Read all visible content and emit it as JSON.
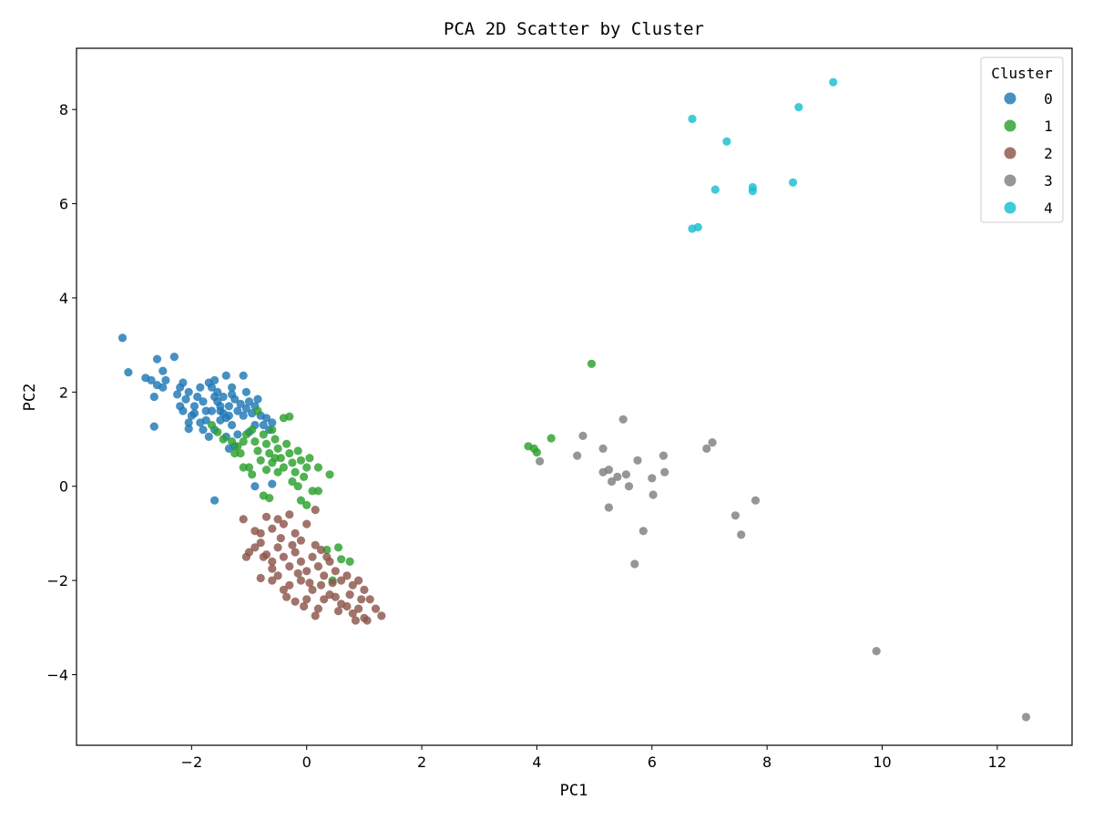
{
  "chart_data": {
    "type": "scatter",
    "title": "PCA 2D Scatter by Cluster",
    "xlabel": "PC1",
    "ylabel": "PC2",
    "xlim": [
      -4.0,
      13.3
    ],
    "ylim": [
      -5.5,
      9.3
    ],
    "xticks": [
      -2,
      0,
      2,
      4,
      6,
      8,
      10,
      12
    ],
    "xtick_labels": [
      "−2",
      "0",
      "2",
      "4",
      "6",
      "8",
      "10",
      "12"
    ],
    "yticks": [
      -4,
      -2,
      0,
      2,
      4,
      6,
      8
    ],
    "ytick_labels": [
      "−4",
      "−2",
      "0",
      "2",
      "4",
      "6",
      "8"
    ],
    "grid": false,
    "legend": {
      "title": "Cluster",
      "placement": "top-right"
    },
    "series": [
      {
        "name": "0",
        "color": "#1f77b4",
        "points": [
          [
            -3.2,
            3.15
          ],
          [
            -3.1,
            2.42
          ],
          [
            -2.6,
            2.7
          ],
          [
            -2.3,
            2.75
          ],
          [
            -2.8,
            2.3
          ],
          [
            -2.7,
            2.25
          ],
          [
            -2.5,
            2.45
          ],
          [
            -2.45,
            2.25
          ],
          [
            -2.5,
            2.1
          ],
          [
            -2.6,
            2.15
          ],
          [
            -2.65,
            1.9
          ],
          [
            -2.65,
            1.27
          ],
          [
            -2.2,
            2.1
          ],
          [
            -2.15,
            2.2
          ],
          [
            -2.25,
            1.95
          ],
          [
            -2.05,
            2.0
          ],
          [
            -2.1,
            1.85
          ],
          [
            -2.2,
            1.7
          ],
          [
            -2.15,
            1.6
          ],
          [
            -2.0,
            1.5
          ],
          [
            -2.05,
            1.35
          ],
          [
            -2.05,
            1.22
          ],
          [
            -1.95,
            1.7
          ],
          [
            -1.9,
            1.9
          ],
          [
            -1.85,
            2.1
          ],
          [
            -1.8,
            1.8
          ],
          [
            -1.75,
            1.6
          ],
          [
            -1.75,
            1.4
          ],
          [
            -1.8,
            1.2
          ],
          [
            -1.7,
            1.05
          ],
          [
            -1.7,
            2.2
          ],
          [
            -1.6,
            2.25
          ],
          [
            -1.55,
            2.0
          ],
          [
            -1.55,
            1.8
          ],
          [
            -1.5,
            1.6
          ],
          [
            -1.5,
            1.4
          ],
          [
            -1.45,
            1.9
          ],
          [
            -1.45,
            1.55
          ],
          [
            -1.4,
            2.35
          ],
          [
            -1.35,
            1.7
          ],
          [
            -1.35,
            1.5
          ],
          [
            -1.3,
            2.1
          ],
          [
            -1.3,
            1.3
          ],
          [
            -1.25,
            1.85
          ],
          [
            -1.2,
            1.6
          ],
          [
            -1.15,
            1.75
          ],
          [
            -1.1,
            1.5
          ],
          [
            -1.1,
            2.35
          ],
          [
            -1.05,
            2.0
          ],
          [
            -1.0,
            1.8
          ],
          [
            -0.95,
            1.55
          ],
          [
            -0.9,
            1.7
          ],
          [
            -0.85,
            1.85
          ],
          [
            -0.8,
            1.5
          ],
          [
            -0.75,
            1.3
          ],
          [
            -0.7,
            1.45
          ],
          [
            -0.65,
            1.2
          ],
          [
            -0.6,
            1.35
          ],
          [
            -1.6,
            1.2
          ],
          [
            -1.65,
            1.6
          ],
          [
            -1.6,
            1.9
          ],
          [
            -1.4,
            1.05
          ],
          [
            -1.25,
            0.85
          ],
          [
            -1.35,
            0.8
          ],
          [
            -1.2,
            1.1
          ],
          [
            -1.05,
            1.65
          ],
          [
            -0.9,
            1.3
          ],
          [
            -1.0,
            1.15
          ],
          [
            -1.95,
            1.55
          ],
          [
            -1.85,
            1.35
          ],
          [
            -1.65,
            2.1
          ],
          [
            -1.5,
            1.7
          ],
          [
            -1.3,
            1.95
          ],
          [
            -1.4,
            1.45
          ],
          [
            -0.9,
            0.0
          ],
          [
            -0.6,
            0.05
          ],
          [
            -1.6,
            -0.3
          ]
        ]
      },
      {
        "name": "1",
        "color": "#2ca02c",
        "points": [
          [
            4.95,
            2.6
          ],
          [
            4.25,
            1.02
          ],
          [
            3.85,
            0.85
          ],
          [
            3.95,
            0.8
          ],
          [
            4.0,
            0.72
          ],
          [
            -1.65,
            1.3
          ],
          [
            -1.55,
            1.15
          ],
          [
            -1.45,
            1.0
          ],
          [
            -1.3,
            0.95
          ],
          [
            -1.2,
            0.85
          ],
          [
            -1.15,
            0.7
          ],
          [
            -1.05,
            1.1
          ],
          [
            -0.95,
            1.2
          ],
          [
            -0.9,
            0.95
          ],
          [
            -0.85,
            0.75
          ],
          [
            -0.8,
            0.55
          ],
          [
            -0.75,
            1.1
          ],
          [
            -0.7,
            0.9
          ],
          [
            -0.65,
            0.7
          ],
          [
            -0.6,
            0.5
          ],
          [
            -0.55,
            1.0
          ],
          [
            -0.5,
            0.8
          ],
          [
            -0.45,
            0.6
          ],
          [
            -0.4,
            0.4
          ],
          [
            -0.35,
            0.9
          ],
          [
            -0.3,
            0.7
          ],
          [
            -0.25,
            0.5
          ],
          [
            -0.2,
            0.3
          ],
          [
            -0.15,
            0.75
          ],
          [
            -0.1,
            0.55
          ],
          [
            -0.05,
            0.2
          ],
          [
            0.0,
            0.4
          ],
          [
            0.05,
            0.6
          ],
          [
            0.1,
            -0.1
          ],
          [
            0.2,
            0.4
          ],
          [
            0.4,
            0.25
          ],
          [
            -0.4,
            1.45
          ],
          [
            -0.3,
            1.48
          ],
          [
            -0.6,
            1.2
          ],
          [
            -0.85,
            1.6
          ],
          [
            -1.0,
            0.4
          ],
          [
            -0.95,
            0.25
          ],
          [
            -1.1,
            0.4
          ],
          [
            -0.75,
            -0.2
          ],
          [
            -0.65,
            -0.25
          ],
          [
            -0.1,
            -0.3
          ],
          [
            0.0,
            -0.4
          ],
          [
            0.2,
            -0.1
          ],
          [
            -1.25,
            0.7
          ],
          [
            -1.1,
            0.95
          ],
          [
            -0.5,
            0.3
          ],
          [
            -0.25,
            0.1
          ],
          [
            -0.15,
            0.0
          ],
          [
            0.55,
            -1.3
          ],
          [
            0.6,
            -1.55
          ],
          [
            0.75,
            -1.6
          ],
          [
            0.45,
            -2.0
          ],
          [
            0.35,
            -1.35
          ],
          [
            -0.55,
            0.6
          ],
          [
            -0.7,
            0.35
          ]
        ]
      },
      {
        "name": "2",
        "color": "#8c564b",
        "points": [
          [
            -1.1,
            -0.7
          ],
          [
            -0.9,
            -0.95
          ],
          [
            -0.8,
            -1.0
          ],
          [
            -0.7,
            -0.65
          ],
          [
            -0.6,
            -0.9
          ],
          [
            -0.5,
            -0.7
          ],
          [
            -0.4,
            -0.8
          ],
          [
            -0.3,
            -0.6
          ],
          [
            -0.2,
            -1.0
          ],
          [
            -0.1,
            -1.15
          ],
          [
            0.0,
            -0.8
          ],
          [
            0.15,
            -0.5
          ],
          [
            -1.05,
            -1.5
          ],
          [
            -1.0,
            -1.4
          ],
          [
            -0.9,
            -1.3
          ],
          [
            -0.8,
            -1.2
          ],
          [
            -0.7,
            -1.45
          ],
          [
            -0.6,
            -1.6
          ],
          [
            -0.5,
            -1.3
          ],
          [
            -0.4,
            -1.5
          ],
          [
            -0.3,
            -1.7
          ],
          [
            -0.2,
            -1.4
          ],
          [
            -0.1,
            -1.6
          ],
          [
            0.0,
            -1.8
          ],
          [
            0.1,
            -1.5
          ],
          [
            0.2,
            -1.7
          ],
          [
            0.3,
            -1.9
          ],
          [
            0.4,
            -1.6
          ],
          [
            0.5,
            -1.8
          ],
          [
            0.6,
            -2.0
          ],
          [
            0.7,
            -1.9
          ],
          [
            0.8,
            -2.1
          ],
          [
            0.9,
            -2.0
          ],
          [
            1.0,
            -2.2
          ],
          [
            1.1,
            -2.4
          ],
          [
            1.2,
            -2.6
          ],
          [
            1.3,
            -2.75
          ],
          [
            1.0,
            -2.8
          ],
          [
            0.8,
            -2.7
          ],
          [
            0.6,
            -2.5
          ],
          [
            0.4,
            -2.3
          ],
          [
            0.2,
            -2.6
          ],
          [
            0.0,
            -2.4
          ],
          [
            -0.2,
            -2.45
          ],
          [
            -0.4,
            -2.2
          ],
          [
            -0.6,
            -2.0
          ],
          [
            -0.8,
            -1.95
          ],
          [
            -0.5,
            -1.9
          ],
          [
            -0.3,
            -2.1
          ],
          [
            -0.1,
            -2.0
          ],
          [
            0.1,
            -2.2
          ],
          [
            0.3,
            -2.4
          ],
          [
            0.5,
            -2.35
          ],
          [
            0.7,
            -2.55
          ],
          [
            0.9,
            -2.6
          ],
          [
            1.05,
            -2.85
          ],
          [
            0.85,
            -2.85
          ],
          [
            0.15,
            -2.75
          ],
          [
            -0.05,
            -2.55
          ],
          [
            0.25,
            -2.1
          ],
          [
            0.45,
            -2.05
          ],
          [
            0.35,
            -1.5
          ],
          [
            0.15,
            -1.25
          ],
          [
            -0.15,
            -1.85
          ],
          [
            -0.35,
            -2.35
          ],
          [
            -0.6,
            -1.75
          ],
          [
            -0.75,
            -1.5
          ],
          [
            0.55,
            -2.65
          ],
          [
            0.75,
            -2.3
          ],
          [
            0.95,
            -2.4
          ],
          [
            0.05,
            -2.05
          ],
          [
            -0.25,
            -1.25
          ],
          [
            -0.45,
            -1.1
          ],
          [
            0.25,
            -1.35
          ]
        ]
      },
      {
        "name": "3",
        "color": "#7f7f7f",
        "points": [
          [
            4.05,
            0.53
          ],
          [
            4.7,
            0.65
          ],
          [
            4.8,
            1.07
          ],
          [
            5.15,
            0.8
          ],
          [
            5.15,
            0.3
          ],
          [
            5.25,
            0.35
          ],
          [
            5.3,
            0.1
          ],
          [
            5.4,
            0.2
          ],
          [
            5.5,
            1.42
          ],
          [
            5.55,
            0.25
          ],
          [
            5.6,
            0.0
          ],
          [
            5.25,
            -0.45
          ],
          [
            5.75,
            0.55
          ],
          [
            5.85,
            -0.95
          ],
          [
            6.0,
            0.17
          ],
          [
            6.02,
            -0.18
          ],
          [
            6.2,
            0.65
          ],
          [
            6.22,
            0.3
          ],
          [
            6.95,
            0.8
          ],
          [
            7.05,
            0.93
          ],
          [
            5.7,
            -1.65
          ],
          [
            7.45,
            -0.62
          ],
          [
            7.55,
            -1.03
          ],
          [
            7.8,
            -0.3
          ],
          [
            9.9,
            -3.5
          ],
          [
            12.5,
            -4.9
          ]
        ]
      },
      {
        "name": "4",
        "color": "#17becf",
        "points": [
          [
            6.7,
            7.8
          ],
          [
            7.3,
            7.32
          ],
          [
            7.1,
            6.3
          ],
          [
            7.75,
            6.35
          ],
          [
            7.75,
            6.27
          ],
          [
            8.45,
            6.45
          ],
          [
            6.7,
            5.47
          ],
          [
            6.8,
            5.5
          ],
          [
            8.55,
            8.05
          ],
          [
            9.15,
            8.58
          ]
        ]
      }
    ],
    "point_colors_override": [
      {
        "series": "0",
        "index": 76,
        "color": "#1f77b4"
      }
    ]
  }
}
